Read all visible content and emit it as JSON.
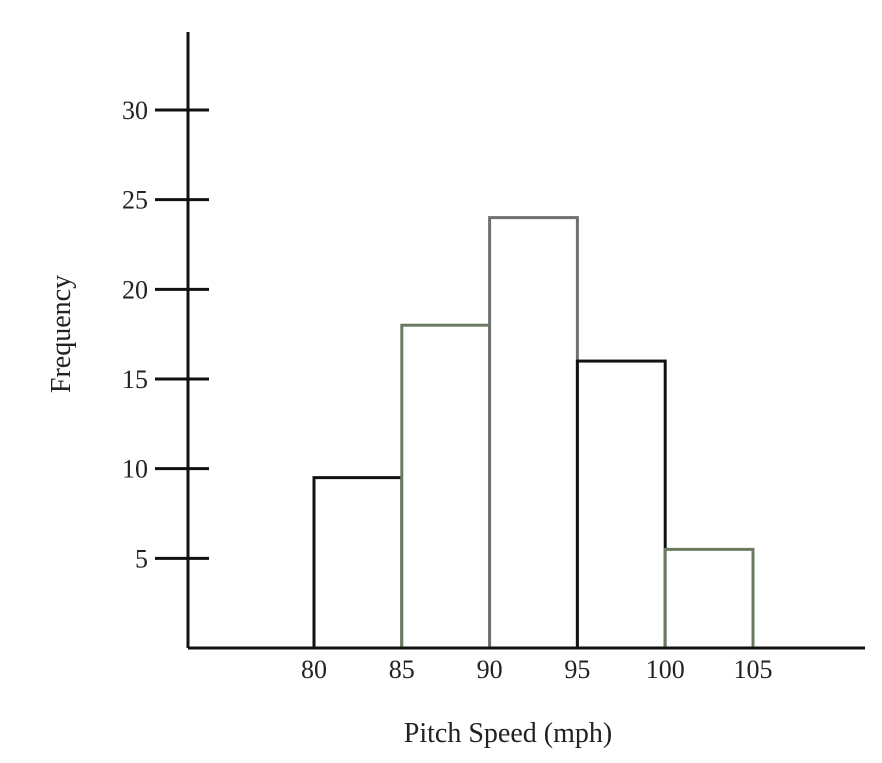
{
  "chart_data": {
    "type": "bar",
    "subtype": "histogram",
    "xlabel": "Pitch Speed (mph)",
    "ylabel": "Frequency",
    "bins": [
      {
        "from": 80,
        "to": 85,
        "value": 9.5,
        "color": "#111111"
      },
      {
        "from": 85,
        "to": 90,
        "value": 18,
        "color": "#6b7b62"
      },
      {
        "from": 90,
        "to": 95,
        "value": 24,
        "color": "#707070"
      },
      {
        "from": 95,
        "to": 100,
        "value": 16,
        "color": "#111111"
      },
      {
        "from": 100,
        "to": 105,
        "value": 5.5,
        "color": "#6b7b62"
      }
    ],
    "x_ticks": [
      80,
      85,
      90,
      95,
      100,
      105
    ],
    "y_ticks": [
      5,
      10,
      15,
      20,
      25,
      30
    ],
    "xlim": [
      72,
      110
    ],
    "ylim": [
      0,
      34
    ],
    "grid": false,
    "legend": "none"
  }
}
